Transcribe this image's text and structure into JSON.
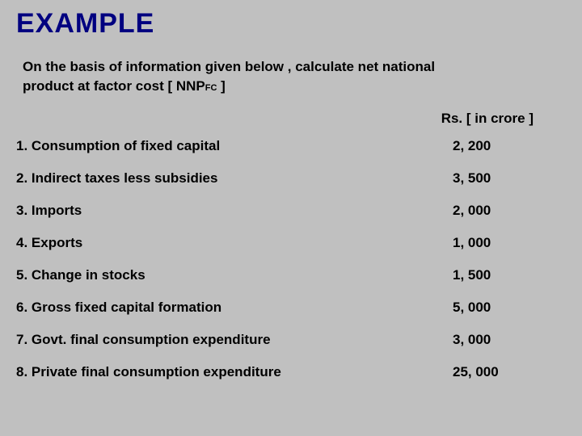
{
  "title": "EXAMPLE",
  "prompt_line1": "On the basis of information given below , calculate net national",
  "prompt_line2_a": "product at factor cost [ NNP",
  "prompt_line2_sub": "FC",
  "prompt_line2_b": " ]",
  "column_header": "Rs. [ in crore ]",
  "rows": [
    {
      "label": "1. Consumption of fixed capital",
      "value": "2, 200"
    },
    {
      "label": "2. Indirect taxes less subsidies",
      "value": "3, 500"
    },
    {
      "label": "3. Imports",
      "value": "2, 000"
    },
    {
      "label": "4. Exports",
      "value": "1, 000"
    },
    {
      "label": "5. Change in stocks",
      "value": "1, 500"
    },
    {
      "label": "6. Gross fixed capital formation",
      "value": "5, 000"
    },
    {
      "label": "7. Govt. final consumption expenditure",
      "value": "3, 000"
    },
    {
      "label": "8. Private final consumption expenditure",
      "value": "25, 000"
    }
  ],
  "colors": {
    "background": "#c0c0c0",
    "title": "#000080",
    "text": "#000000"
  }
}
